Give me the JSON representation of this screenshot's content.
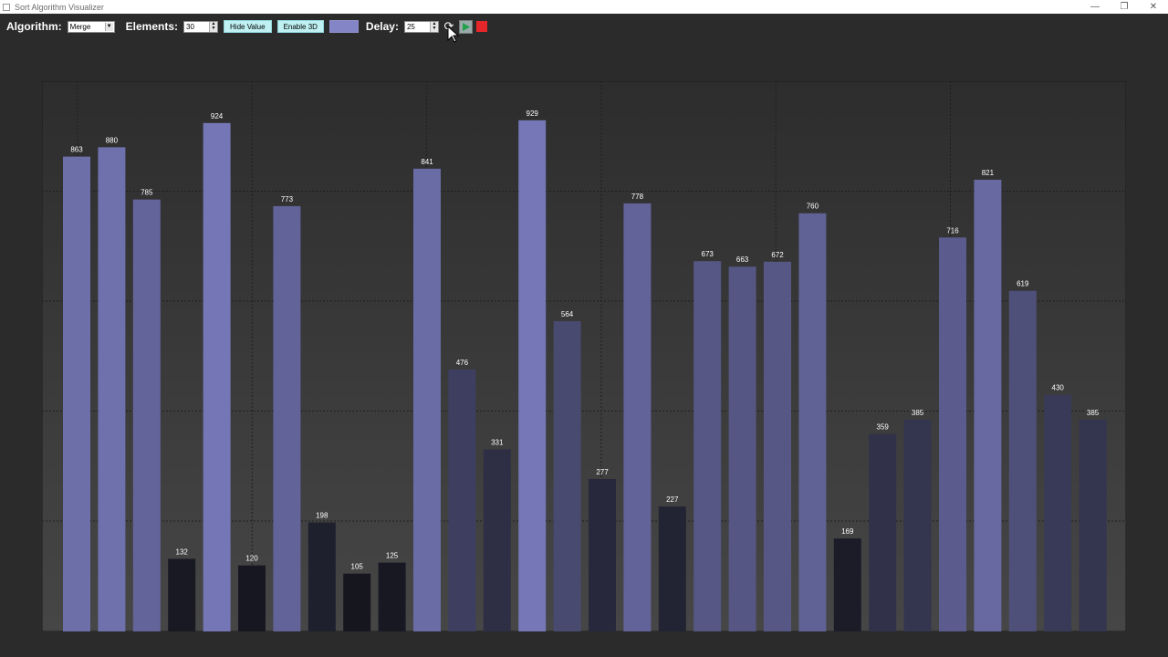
{
  "window": {
    "title": "Sort Algorithm Visualizer",
    "controls": [
      "minimize-icon",
      "maximize-icon",
      "close-icon"
    ]
  },
  "toolbar": {
    "algorithm_label": "Algorithm:",
    "algorithm_value": "Merge",
    "elements_label": "Elements:",
    "elements_value": "30",
    "hide_value_label": "Hide Value",
    "enable_3d_label": "Enable 3D",
    "color_swatch": "#8385c6",
    "delay_label": "Delay:",
    "delay_value": "25",
    "icons": [
      "reset-icon",
      "play-icon",
      "stop-icon"
    ],
    "stop_color": "#e5262a",
    "play_color": "#22a04a"
  },
  "chart_data": {
    "type": "bar",
    "values": [
      863,
      880,
      785,
      132,
      924,
      120,
      773,
      198,
      105,
      125,
      841,
      476,
      331,
      929,
      564,
      277,
      778,
      227,
      673,
      663,
      672,
      760,
      169,
      359,
      385,
      716,
      821,
      619,
      430,
      385
    ],
    "ylim": [
      0,
      1000
    ],
    "grid": true
  }
}
